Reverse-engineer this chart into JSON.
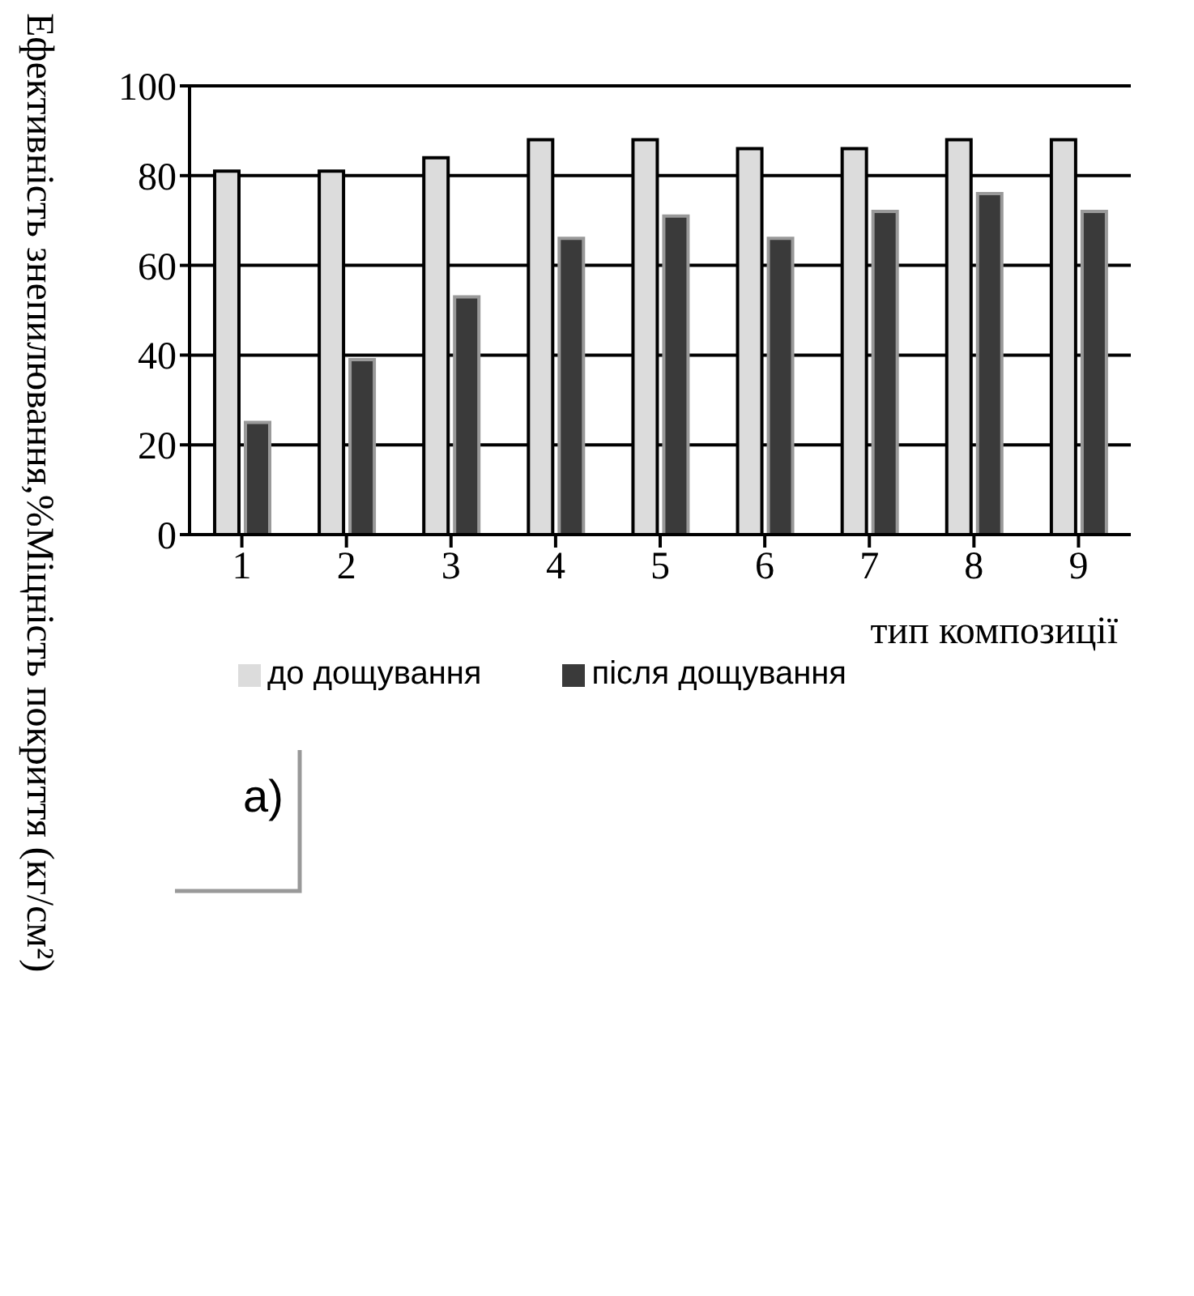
{
  "chart_data": {
    "type": "bar",
    "xlabel": "тип композиції",
    "ylabel": "Ефективність знепилювання,%",
    "annotations": [
      "Міцність покриття (кг/см²)",
      "а)"
    ],
    "categories": [
      "1",
      "2",
      "3",
      "4",
      "5",
      "6",
      "7",
      "8",
      "9"
    ],
    "series": [
      {
        "name": "до дощування",
        "color": "#dcdcdc",
        "values": [
          81,
          81,
          84,
          88,
          88,
          86,
          86,
          88,
          88
        ]
      },
      {
        "name": "після дощування",
        "color": "#3a3a3a",
        "values": [
          25,
          39,
          53,
          66,
          71,
          66,
          72,
          76,
          72
        ]
      }
    ],
    "ylim": [
      0,
      100
    ],
    "yticks": [
      0,
      20,
      40,
      60,
      80,
      100
    ],
    "grid": "y",
    "legend": "bottom left"
  }
}
